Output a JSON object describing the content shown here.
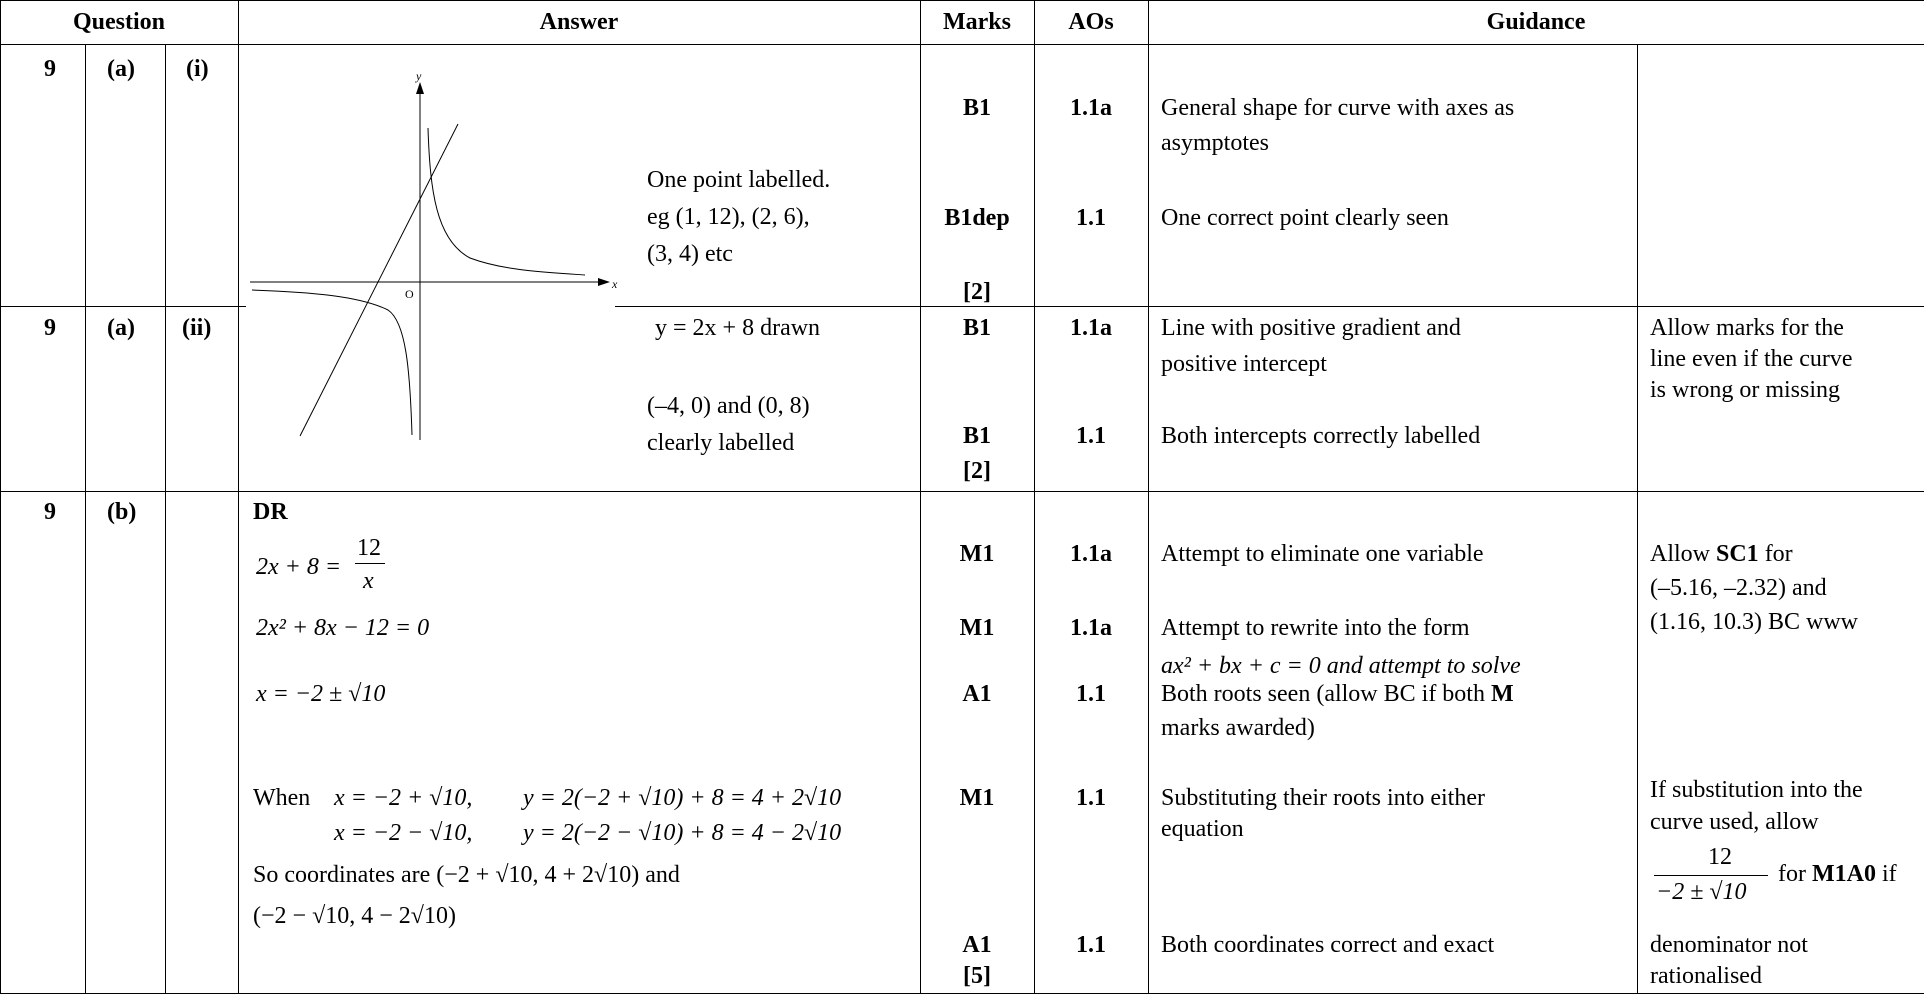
{
  "header": {
    "question": "Question",
    "answer": "Answer",
    "marks": "Marks",
    "aos": "AOs",
    "guidance": "Guidance"
  },
  "rows": {
    "a_i": {
      "q": "9",
      "part": "(a)",
      "sub": "(i)",
      "answer_lines": [
        "One point labelled.",
        "eg (1, 12), (2, 6),",
        "(3, 4) etc"
      ],
      "marks": [
        "B1",
        "B1dep",
        "[2]"
      ],
      "aos": [
        "1.1a",
        "1.1"
      ],
      "guidance": [
        "General shape for curve with axes as",
        "asymptotes",
        "One correct point clearly seen"
      ]
    },
    "a_ii": {
      "q": "9",
      "part": "(a)",
      "sub": "(ii)",
      "answer_lines": [
        "y = 2x + 8 drawn",
        "(–4, 0) and (0, 8)",
        "clearly labelled"
      ],
      "marks": [
        "B1",
        "B1",
        "[2]"
      ],
      "aos": [
        "1.1a",
        "1.1"
      ],
      "guidance": [
        "Line with positive gradient and",
        "positive intercept",
        "Both intercepts correctly labelled"
      ],
      "extra": [
        "Allow marks for the",
        "line even if the curve",
        "is wrong or missing"
      ]
    },
    "b": {
      "q": "9",
      "part": "(b)",
      "dr": "DR",
      "eq1_left": "2x + 8 = ",
      "eq1_num": "12",
      "eq1_den": "x",
      "eq2": "2x² + 8x − 12 = 0",
      "eq3": "x = −2 ± √10",
      "when": "When",
      "sub1_x": "x = −2 + √10,",
      "sub1_y": "y = 2(−2 + √10) + 8 = 4 + 2√10",
      "sub2_x": "x = −2 − √10,",
      "sub2_y": "y = 2(−2 − √10) + 8 = 4 − 2√10",
      "coords1": "So coordinates are (−2 + √10, 4 + 2√10) and",
      "coords2": "(−2 − √10, 4 − 2√10)",
      "marks": [
        "M1",
        "M1",
        "A1",
        "M1",
        "A1",
        "[5]"
      ],
      "aos": [
        "1.1a",
        "1.1a",
        "1.1",
        "1.1",
        "1.1"
      ],
      "guidance": [
        "Attempt to eliminate one variable",
        "Attempt to rewrite into the form",
        "ax² + bx + c = 0  and attempt to solve",
        "Both roots seen (allow BC if both ",
        "M",
        "marks awarded)",
        "Substituting their roots into either",
        "equation",
        "Both coordinates correct and exact"
      ],
      "extra": {
        "sc_pre": "Allow ",
        "sc_bold": "SC1",
        "sc_post": " for",
        "sc_l2": "(–5.16, –2.32) and",
        "sc_l3": "(1.16, 10.3) BC www",
        "sub_l1": "If substitution into the",
        "sub_l2": "curve used, allow",
        "frac_num": "12",
        "frac_den": "−2 ± √10",
        "frac_for": "for ",
        "frac_bold": "M1A0",
        "frac_if": " if",
        "den_l1": "denominator not",
        "den_l2": "rationalised"
      }
    }
  },
  "graph": {
    "axis_x_label": "x",
    "axis_y_label": "y",
    "origin_label": "O"
  }
}
